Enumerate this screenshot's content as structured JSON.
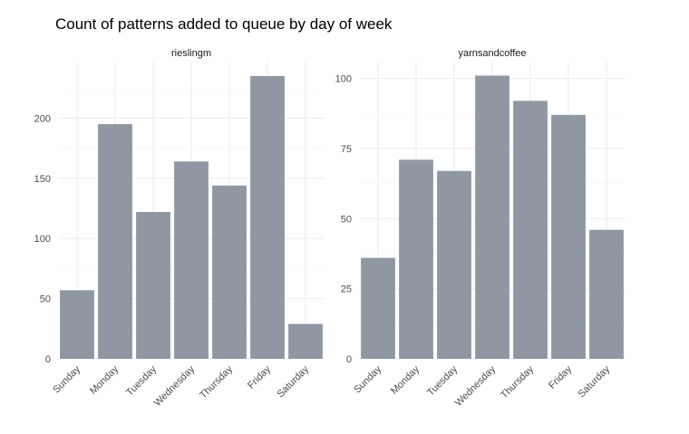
{
  "title": "Count of patterns added to queue by day of week",
  "colors": {
    "bar": "#8f98a2",
    "grid": "#ebebeb",
    "text": "#4d4d4d"
  },
  "chart_data": [
    {
      "type": "bar",
      "facet": "rieslingm",
      "categories": [
        "Sunday",
        "Monday",
        "Tuesday",
        "Wednesday",
        "Thursday",
        "Friday",
        "Saturday"
      ],
      "values": [
        57,
        195,
        122,
        164,
        144,
        235,
        29
      ],
      "yticks": [
        0,
        50,
        100,
        150,
        200
      ],
      "ylim": [
        0,
        247
      ],
      "grid": true
    },
    {
      "type": "bar",
      "facet": "yarnsandcoffee",
      "categories": [
        "Sunday",
        "Monday",
        "Tuesday",
        "Wednesday",
        "Thursday",
        "Friday",
        "Saturday"
      ],
      "values": [
        36,
        71,
        67,
        101,
        92,
        87,
        46
      ],
      "yticks": [
        0,
        25,
        50,
        75,
        100
      ],
      "ylim": [
        0,
        106
      ],
      "grid": true
    }
  ]
}
